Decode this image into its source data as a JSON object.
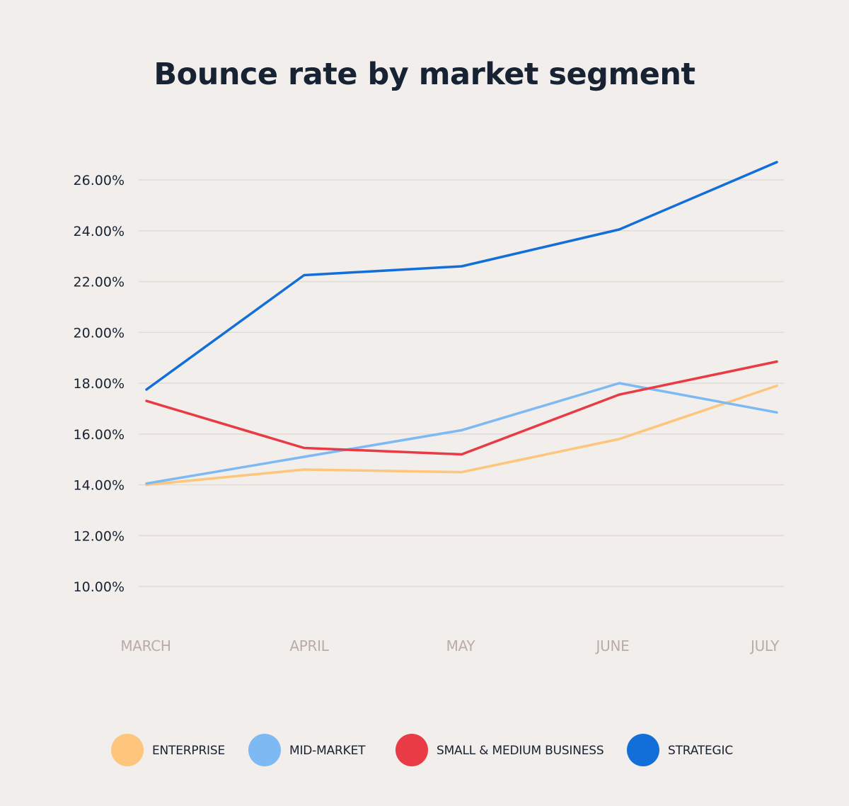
{
  "chart_data": {
    "type": "line",
    "title": "Bounce rate by market segment",
    "xlabel": "",
    "ylabel": "",
    "categories": [
      "MARCH",
      "APRIL",
      "MAY",
      "JUNE",
      "JULY"
    ],
    "y_ticks": [
      "10.00%",
      "12.00%",
      "14.00%",
      "16.00%",
      "18.00%",
      "20.00%",
      "22.00%",
      "24.00%",
      "26.00%"
    ],
    "ylim": [
      10,
      26
    ],
    "grid": true,
    "legend_position": "bottom",
    "series": [
      {
        "name": "ENTERPRISE",
        "color": "#fec57c",
        "values": [
          14.0,
          14.6,
          14.5,
          15.8,
          17.9
        ]
      },
      {
        "name": "MID-MARKET",
        "color": "#7db9f3",
        "values": [
          14.05,
          15.1,
          16.15,
          18.0,
          16.85
        ]
      },
      {
        "name": "SMALL & MEDIUM BUSINESS",
        "color": "#e83b46",
        "values": [
          17.3,
          15.45,
          15.2,
          17.55,
          18.85
        ]
      },
      {
        "name": "STRATEGIC",
        "color": "#126fd9",
        "values": [
          17.75,
          22.25,
          22.6,
          24.05,
          26.7
        ]
      }
    ]
  }
}
